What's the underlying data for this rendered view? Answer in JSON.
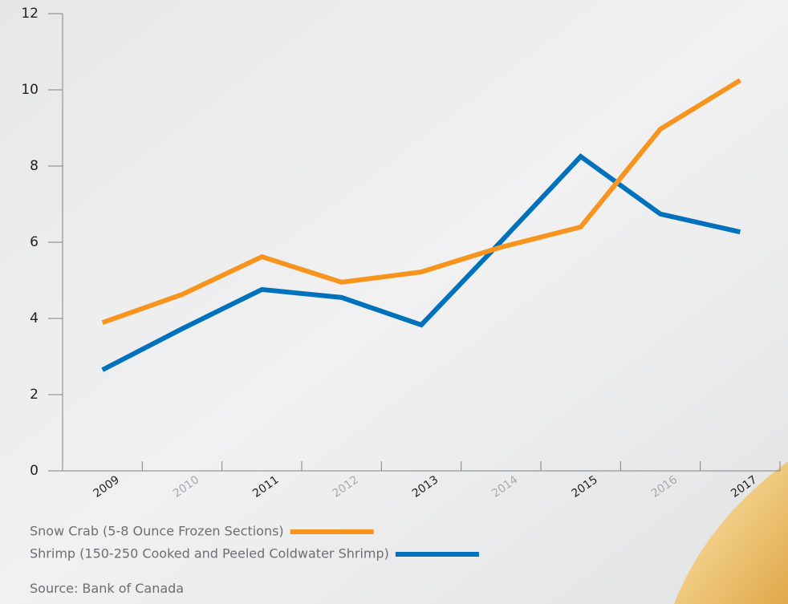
{
  "chart_data": {
    "type": "line",
    "categories": [
      "2009",
      "2010",
      "2011",
      "2012",
      "2013",
      "2014",
      "2015",
      "2016",
      "2017"
    ],
    "series": [
      {
        "name": "Snow Crab (5-8 Ounce Frozen Sections)",
        "color": "#f7941d",
        "values": [
          3.89,
          4.63,
          5.62,
          4.95,
          5.22,
          5.87,
          6.4,
          8.97,
          10.25
        ]
      },
      {
        "name": "Shrimp (150-250 Cooked and Peeled Coldwater Shrimp)",
        "color": "#0072bc",
        "values": [
          2.65,
          3.73,
          4.76,
          4.55,
          3.83,
          6.02,
          8.25,
          6.74,
          6.27
        ]
      }
    ],
    "ylim": [
      0,
      12
    ],
    "yticks": [
      0,
      2,
      4,
      6,
      8,
      10,
      12
    ],
    "source": "Source: Bank of Canada"
  }
}
